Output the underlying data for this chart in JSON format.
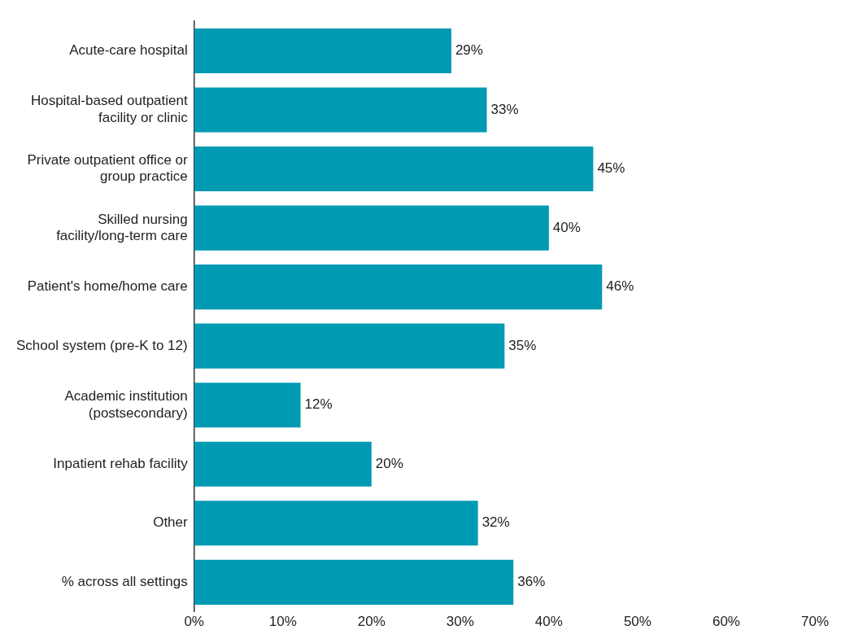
{
  "chart_data": {
    "type": "bar",
    "orientation": "horizontal",
    "categories": [
      "Acute-care hospital",
      "Hospital-based outpatient facility or clinic",
      "Private outpatient office or group practice",
      "Skilled nursing facility/long-term care",
      "Patient's home/home care",
      "School system (pre-K to 12)",
      "Academic institution (postsecondary)",
      "Inpatient rehab facility",
      "Other",
      "% across all settings"
    ],
    "values": [
      29,
      33,
      45,
      40,
      46,
      35,
      12,
      20,
      32,
      36
    ],
    "value_labels": [
      "29%",
      "33%",
      "45%",
      "40%",
      "46%",
      "35%",
      "12%",
      "20%",
      "32%",
      "36%"
    ],
    "color": "#009bb3",
    "xlim": [
      0,
      70
    ],
    "xticks": [
      {
        "value": 0,
        "label": "0%"
      },
      {
        "value": 10,
        "label": "10%"
      },
      {
        "value": 20,
        "label": "20%"
      },
      {
        "value": 30,
        "label": "30%"
      },
      {
        "value": 40,
        "label": "40%"
      },
      {
        "value": 50,
        "label": "50%"
      },
      {
        "value": 60,
        "label": "60%"
      },
      {
        "value": 70,
        "label": "70%"
      }
    ],
    "grid": false,
    "legend": false
  }
}
